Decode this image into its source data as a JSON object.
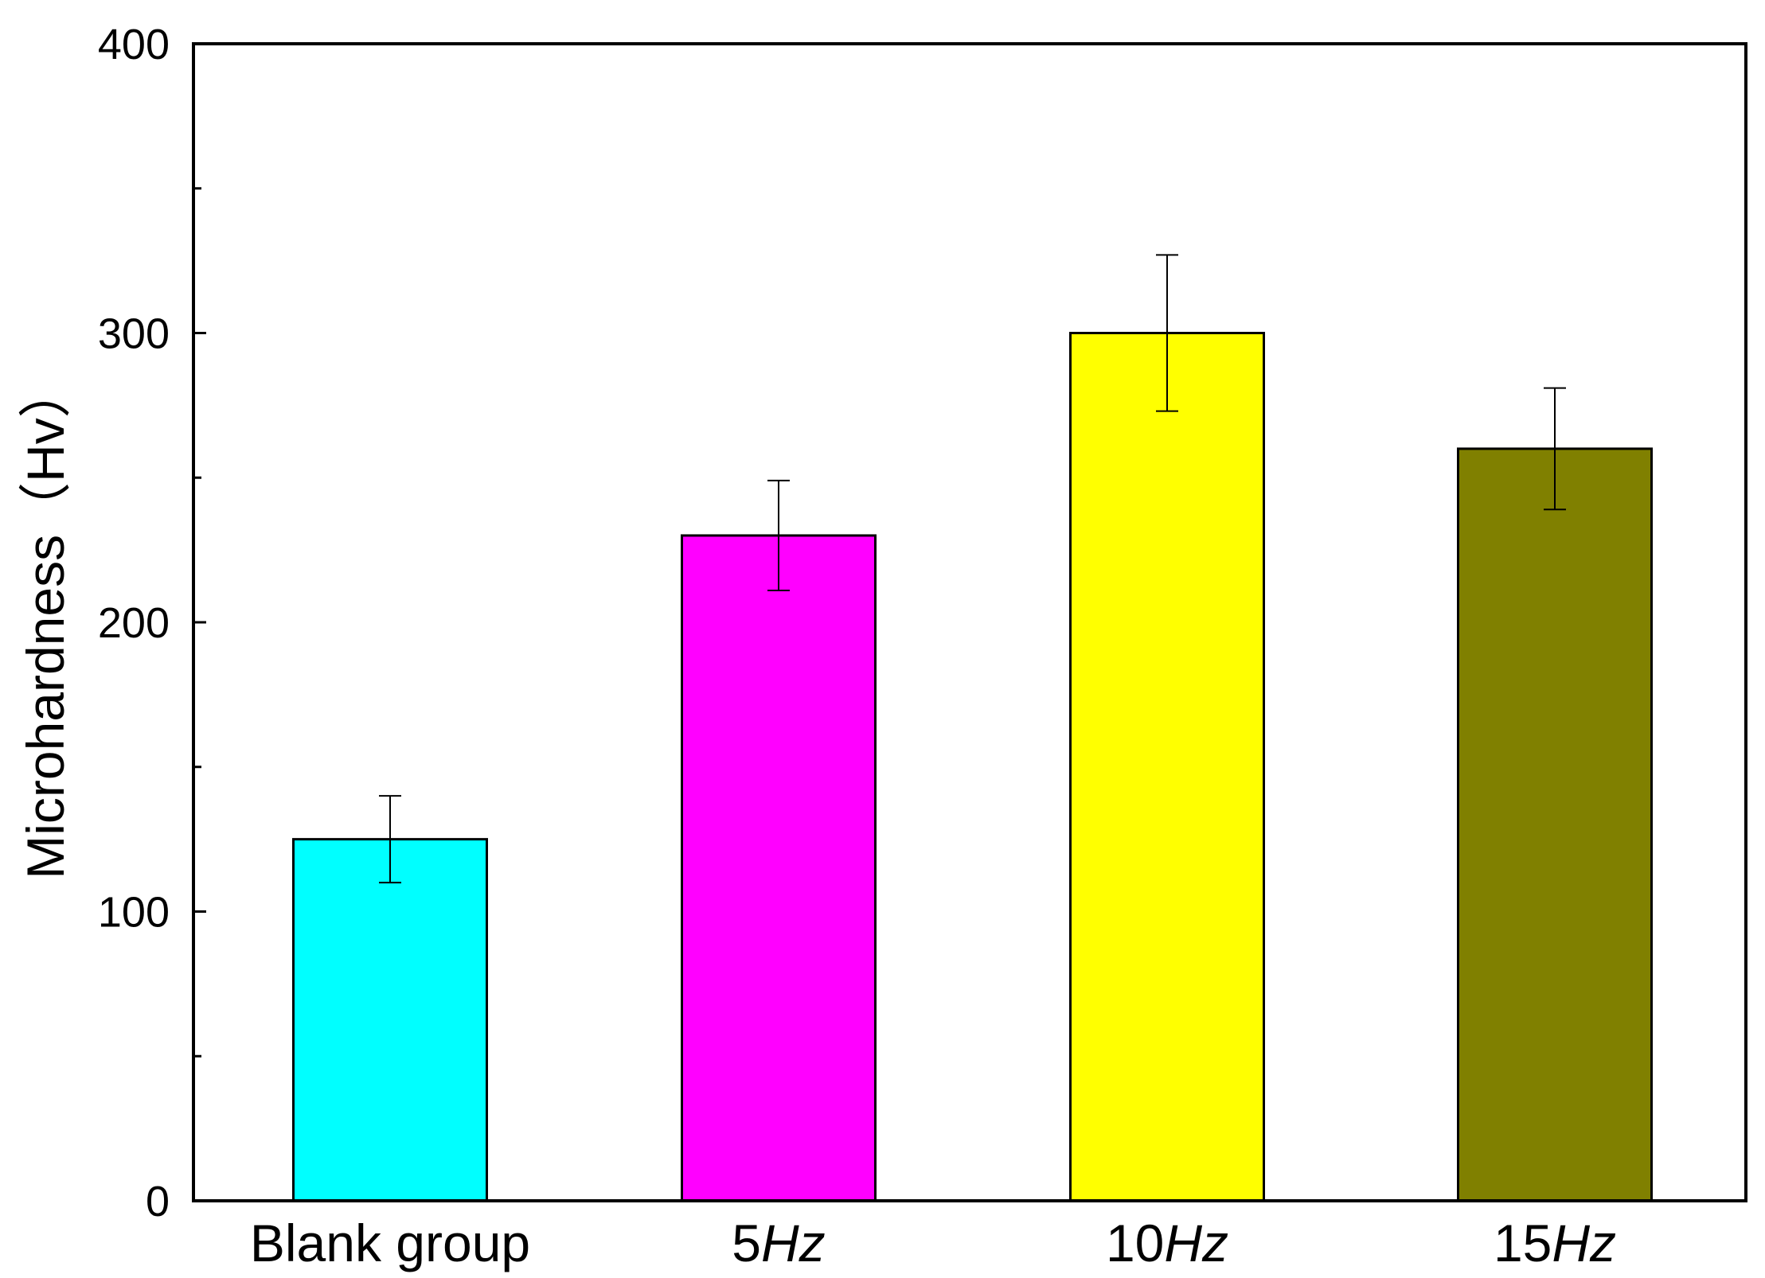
{
  "chart_data": {
    "type": "bar",
    "categories": [
      {
        "label": "Blank group",
        "number": "",
        "unit": ""
      },
      {
        "label": "",
        "number": "5",
        "unit": "Hz"
      },
      {
        "label": "",
        "number": "10",
        "unit": "Hz"
      },
      {
        "label": "",
        "number": "15",
        "unit": "Hz"
      }
    ],
    "values": [
      125,
      230,
      300,
      260
    ],
    "errors": [
      15,
      19,
      27,
      21
    ],
    "colors": [
      "#00FFFF",
      "#FF00FF",
      "#FFFF00",
      "#808000"
    ],
    "ylabel": "Microhardness（Hv）",
    "xlabel": "",
    "ylim": [
      0,
      400
    ],
    "yticks": [
      0,
      100,
      200,
      300,
      400
    ],
    "grid": false
  }
}
